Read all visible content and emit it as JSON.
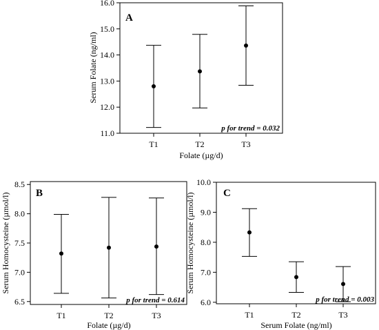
{
  "chart_data": [
    {
      "type": "errorbar",
      "panel_label": "A",
      "categories": [
        "T1",
        "T2",
        "T3"
      ],
      "values": [
        12.8,
        13.37,
        14.36
      ],
      "lower": [
        11.22,
        11.97,
        12.84
      ],
      "upper": [
        14.37,
        14.79,
        15.88
      ],
      "title": "",
      "xlabel": "Folate (µg/d)",
      "ylabel": "Serum Folate (ng/ml)",
      "ylim": [
        11.0,
        16.0
      ],
      "yticks": [
        11.0,
        12.0,
        13.0,
        14.0,
        15.0,
        16.0
      ],
      "ytick_labels": [
        "11.0",
        "12.0",
        "13.0",
        "14.0",
        "15.0",
        "16.0"
      ],
      "annotation": "p for trend = 0.032",
      "grid": false
    },
    {
      "type": "errorbar",
      "panel_label": "B",
      "categories": [
        "T1",
        "T2",
        "T3"
      ],
      "values": [
        7.32,
        7.42,
        7.44
      ],
      "lower": [
        6.64,
        6.56,
        6.62
      ],
      "upper": [
        7.99,
        8.28,
        8.27
      ],
      "title": "",
      "xlabel": "Folate (µg/d)",
      "ylabel": "Serum Homocysteine (µmol/l)",
      "ylim": [
        6.45,
        8.55
      ],
      "yticks": [
        6.5,
        7.0,
        7.5,
        8.0,
        8.5
      ],
      "ytick_labels": [
        "6.5",
        "7.0",
        "7.5",
        "8.0",
        "8.5"
      ],
      "annotation": "p for trend = 0.614",
      "grid": false
    },
    {
      "type": "errorbar",
      "panel_label": "C",
      "categories": [
        "T1",
        "T2",
        "T3"
      ],
      "values": [
        8.33,
        6.84,
        6.61
      ],
      "lower": [
        7.53,
        6.33,
        6.02
      ],
      "upper": [
        9.12,
        7.35,
        7.19
      ],
      "title": "",
      "xlabel": "Serum Folate (ng/ml)",
      "ylabel": "Serum Homocysteine (µmol/l)",
      "ylim": [
        5.95,
        10.0
      ],
      "yticks": [
        6.0,
        7.0,
        8.0,
        9.0,
        10.0
      ],
      "ytick_labels": [
        "6.0",
        "7.0",
        "8.0",
        "9.0",
        "10.0"
      ],
      "annotation": "p for trend = 0.003",
      "grid": false
    }
  ]
}
